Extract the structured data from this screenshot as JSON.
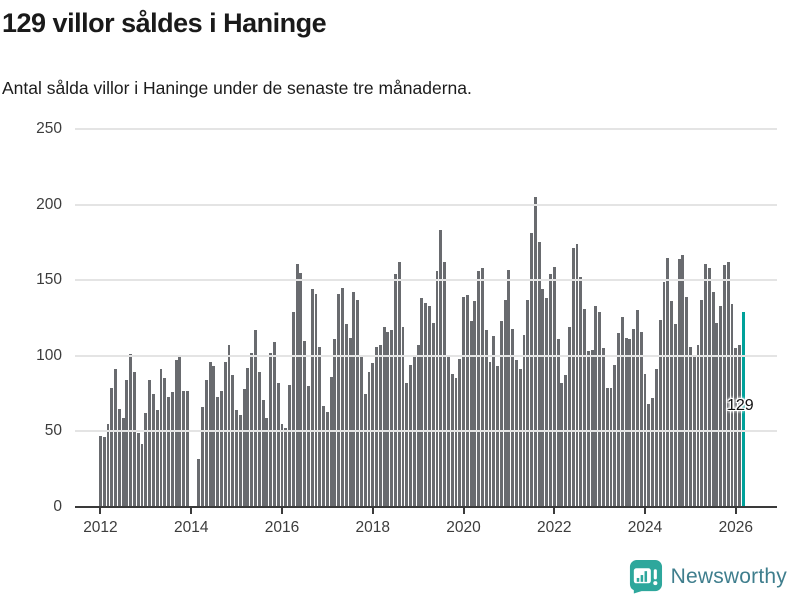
{
  "title": "129 villor såldes i Haninge",
  "subtitle": "Antal sålda villor i Haninge under de senaste tre månaderna.",
  "annotation": {
    "label": "129"
  },
  "branding": {
    "name": "Newsworthy"
  },
  "colors": {
    "bar": "#696b6f",
    "highlight": "#00a19a",
    "grid": "#e4e4e4",
    "axis": "#3a3a3a",
    "tick_text": "#3c3c3c",
    "title_text": "#1a1a1a",
    "logo_bubble": "#2ea79c",
    "logo_text": "#3f7e8d"
  },
  "chart_data": {
    "type": "bar",
    "title": "129 villor såldes i Haninge",
    "subtitle": "Antal sålda villor i Haninge under de senaste tre månaderna.",
    "ylabel": "",
    "xlabel": "",
    "ylim": [
      0,
      250
    ],
    "y_ticks": [
      0,
      50,
      100,
      150,
      200,
      250
    ],
    "x_start_year": 2012,
    "x_tick_years": [
      2012,
      2014,
      2016,
      2018,
      2020,
      2022,
      2024,
      2026
    ],
    "grid": true,
    "highlight_last": true,
    "last_value_label": "129",
    "values": [
      47,
      46,
      55,
      79,
      91,
      65,
      59,
      84,
      101,
      89,
      49,
      42,
      62,
      84,
      75,
      64,
      91,
      85,
      73,
      76,
      97,
      100,
      77,
      77,
      0,
      0,
      32,
      66,
      84,
      96,
      93,
      73,
      77,
      96,
      107,
      87,
      64,
      61,
      78,
      92,
      102,
      117,
      89,
      71,
      59,
      102,
      109,
      82,
      55,
      52,
      81,
      129,
      161,
      155,
      110,
      80,
      144,
      141,
      106,
      67,
      63,
      86,
      111,
      141,
      145,
      121,
      112,
      142,
      137,
      100,
      75,
      89,
      95,
      106,
      107,
      119,
      116,
      117,
      154,
      162,
      119,
      82,
      94,
      100,
      107,
      138,
      135,
      133,
      122,
      156,
      183,
      162,
      100,
      88,
      85,
      98,
      139,
      140,
      123,
      136,
      156,
      158,
      117,
      96,
      113,
      93,
      123,
      137,
      157,
      118,
      97,
      91,
      114,
      137,
      181,
      205,
      175,
      144,
      138,
      154,
      159,
      111,
      82,
      87,
      119,
      171,
      174,
      152,
      131,
      103,
      104,
      133,
      129,
      105,
      79,
      79,
      94,
      115,
      126,
      112,
      111,
      118,
      130,
      116,
      88,
      68,
      72,
      91,
      124,
      149,
      165,
      136,
      121,
      164,
      167,
      139,
      106,
      100,
      107,
      137,
      161,
      158,
      142,
      122,
      133,
      160,
      162,
      134,
      105,
      107,
      129
    ]
  }
}
